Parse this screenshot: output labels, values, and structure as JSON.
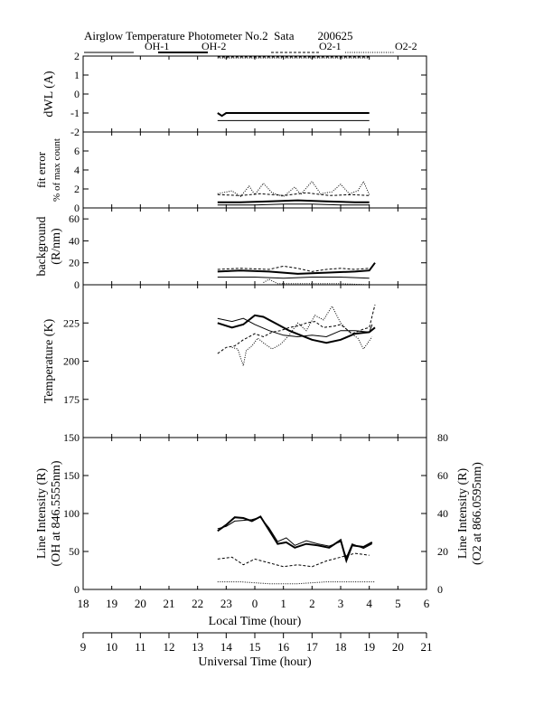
{
  "title": "Airglow Temperature Photometer No.2  Sata        200625",
  "legend": [
    {
      "name": "OH-1",
      "style": "solid-thin"
    },
    {
      "name": "OH-2",
      "style": "solid-thick"
    },
    {
      "name": "O2-1",
      "style": "dashed"
    },
    {
      "name": "O2-2",
      "style": "dotted"
    }
  ],
  "local_time_label": "Local Time (hour)",
  "universal_time_label": "Universal Time (hour)",
  "local_ticks": [
    "18",
    "19",
    "20",
    "21",
    "22",
    "23",
    "0",
    "1",
    "2",
    "3",
    "4",
    "5",
    "6"
  ],
  "universal_ticks": [
    "9",
    "10",
    "11",
    "12",
    "13",
    "14",
    "15",
    "16",
    "17",
    "18",
    "19",
    "20",
    "21"
  ],
  "chart_data": [
    {
      "type": "line",
      "ylabel": "dWL (A)",
      "ylim": [
        -2,
        2
      ],
      "yticks": [
        "-2",
        "-1",
        "0",
        "1",
        "2"
      ],
      "x_units": "Universal Time (hour)",
      "series": [
        {
          "name": "OH-1",
          "points": [
            [
              13.7,
              -1.4
            ],
            [
              19.0,
              -1.4
            ]
          ]
        },
        {
          "name": "OH-2",
          "points": [
            [
              13.7,
              -1.0
            ],
            [
              13.85,
              -1.15
            ],
            [
              14.0,
              -1.0
            ],
            [
              19.0,
              -1.0
            ]
          ]
        },
        {
          "name": "O2-1",
          "points": [
            [
              13.7,
              1.95
            ],
            [
              19.0,
              1.95
            ]
          ]
        },
        {
          "name": "O2-2",
          "points": [
            [
              13.7,
              1.9
            ],
            [
              19.0,
              1.9
            ]
          ]
        }
      ]
    },
    {
      "type": "line",
      "ylabel": "fit error % of max count",
      "ylim": [
        0,
        8
      ],
      "yticks": [
        "0",
        "2",
        "4",
        "6"
      ],
      "series": [
        {
          "name": "OH-1",
          "points": [
            [
              13.7,
              0.3
            ],
            [
              15,
              0.3
            ],
            [
              16,
              0.4
            ],
            [
              17,
              0.4
            ],
            [
              18,
              0.3
            ],
            [
              19,
              0.3
            ]
          ]
        },
        {
          "name": "OH-2",
          "points": [
            [
              13.7,
              0.6
            ],
            [
              14.5,
              0.6
            ],
            [
              15.5,
              0.7
            ],
            [
              16.5,
              0.8
            ],
            [
              17.5,
              0.7
            ],
            [
              18.5,
              0.6
            ],
            [
              19,
              0.6
            ]
          ]
        },
        {
          "name": "O2-1",
          "points": [
            [
              13.7,
              1.4
            ],
            [
              14.5,
              1.3
            ],
            [
              15.2,
              1.5
            ],
            [
              16,
              1.3
            ],
            [
              16.8,
              1.6
            ],
            [
              17.6,
              1.3
            ],
            [
              18.4,
              1.4
            ],
            [
              19,
              1.3
            ]
          ]
        },
        {
          "name": "O2-2",
          "points": [
            [
              13.7,
              1.5
            ],
            [
              14.2,
              1.8
            ],
            [
              14.5,
              1.2
            ],
            [
              14.8,
              2.3
            ],
            [
              15.0,
              1.4
            ],
            [
              15.3,
              2.6
            ],
            [
              15.6,
              1.6
            ],
            [
              16.0,
              1.2
            ],
            [
              16.4,
              2.2
            ],
            [
              16.6,
              1.4
            ],
            [
              17.0,
              2.8
            ],
            [
              17.3,
              1.5
            ],
            [
              17.7,
              1.7
            ],
            [
              18.0,
              2.5
            ],
            [
              18.3,
              1.5
            ],
            [
              18.6,
              1.8
            ],
            [
              18.8,
              2.8
            ],
            [
              19.0,
              1.4
            ]
          ]
        }
      ]
    },
    {
      "type": "line",
      "ylabel": "background (R/nm)",
      "ylim": [
        0,
        70
      ],
      "yticks": [
        "0",
        "20",
        "40",
        "60"
      ],
      "series": [
        {
          "name": "OH-1",
          "points": [
            [
              13.7,
              7
            ],
            [
              15,
              7
            ],
            [
              16,
              6
            ],
            [
              17,
              7
            ],
            [
              18,
              7
            ],
            [
              19,
              6
            ]
          ]
        },
        {
          "name": "OH-2",
          "points": [
            [
              13.7,
              12
            ],
            [
              14.5,
              13
            ],
            [
              15.5,
              12
            ],
            [
              16.5,
              10
            ],
            [
              17.5,
              11
            ],
            [
              18.5,
              12
            ],
            [
              19,
              13
            ],
            [
              19.2,
              20
            ]
          ]
        },
        {
          "name": "O2-1",
          "points": [
            [
              13.7,
              14
            ],
            [
              14.5,
              15
            ],
            [
              15.5,
              14
            ],
            [
              16,
              17
            ],
            [
              16.5,
              15
            ],
            [
              17,
              12
            ],
            [
              17.5,
              14
            ],
            [
              18,
              15
            ],
            [
              18.5,
              14
            ],
            [
              19,
              15
            ]
          ]
        },
        {
          "name": "O2-2",
          "points": [
            [
              15.3,
              2
            ],
            [
              15.5,
              5
            ],
            [
              15.8,
              1
            ],
            [
              16.3,
              1
            ],
            [
              17,
              1
            ],
            [
              18,
              1
            ],
            [
              19,
              0
            ]
          ]
        }
      ]
    },
    {
      "type": "line",
      "ylabel": "Temperature (K)",
      "ylim": [
        150,
        250
      ],
      "yticks": [
        "150",
        "175",
        "200",
        "225"
      ],
      "series": [
        {
          "name": "OH-1",
          "points": [
            [
              13.7,
              228
            ],
            [
              14.2,
              226
            ],
            [
              14.6,
              228
            ],
            [
              15.0,
              224
            ],
            [
              15.5,
              220
            ],
            [
              16,
              217
            ],
            [
              16.5,
              216
            ],
            [
              17,
              217
            ],
            [
              17.5,
              216
            ],
            [
              18,
              220
            ],
            [
              18.5,
              220
            ],
            [
              19,
              219
            ],
            [
              19.1,
              224
            ]
          ]
        },
        {
          "name": "OH-2",
          "points": [
            [
              13.7,
              225
            ],
            [
              14.2,
              222
            ],
            [
              14.6,
              224
            ],
            [
              15.0,
              230
            ],
            [
              15.3,
              229
            ],
            [
              15.8,
              224
            ],
            [
              16.2,
              220
            ],
            [
              16.6,
              217
            ],
            [
              17,
              214
            ],
            [
              17.5,
              212
            ],
            [
              18,
              214
            ],
            [
              18.5,
              218
            ],
            [
              19,
              219
            ],
            [
              19.2,
              222
            ]
          ]
        },
        {
          "name": "O2-1",
          "points": [
            [
              13.7,
              205
            ],
            [
              14.0,
              209
            ],
            [
              14.3,
              210
            ],
            [
              14.6,
              214
            ],
            [
              14.8,
              216
            ],
            [
              15.0,
              218
            ],
            [
              15.3,
              216
            ],
            [
              15.6,
              219
            ],
            [
              15.9,
              220
            ],
            [
              16.2,
              222
            ],
            [
              16.5,
              223
            ],
            [
              16.8,
              225
            ],
            [
              17.1,
              226
            ],
            [
              17.4,
              222
            ],
            [
              17.8,
              223
            ],
            [
              18.0,
              224
            ],
            [
              18.4,
              218
            ],
            [
              18.8,
              221
            ],
            [
              19.0,
              222
            ],
            [
              19.2,
              237
            ]
          ]
        },
        {
          "name": "O2-2",
          "points": [
            [
              14.2,
              209
            ],
            [
              14.4,
              208
            ],
            [
              14.6,
              197
            ],
            [
              14.7,
              207
            ],
            [
              14.9,
              210
            ],
            [
              15.1,
              215
            ],
            [
              15.3,
              212
            ],
            [
              15.6,
              208
            ],
            [
              15.9,
              211
            ],
            [
              16.2,
              217
            ],
            [
              16.5,
              225
            ],
            [
              16.8,
              220
            ],
            [
              17.1,
              230
            ],
            [
              17.4,
              227
            ],
            [
              17.7,
              236
            ],
            [
              18.0,
              225
            ],
            [
              18.3,
              219
            ],
            [
              18.6,
              215
            ],
            [
              18.8,
              208
            ],
            [
              19.1,
              216
            ]
          ]
        }
      ]
    },
    {
      "type": "line",
      "ylabel": "Line Intensity (R) (OH at 846.5555nm)",
      "ylim": [
        0,
        200
      ],
      "yticks": [
        "0",
        "50",
        "100",
        "150"
      ],
      "y2label": "Line Intensity (R) (O2 at 866.0595nm)",
      "y2lim": [
        0,
        80
      ],
      "y2ticks": [
        "0",
        "20",
        "40",
        "60",
        "80"
      ],
      "series": [
        {
          "name": "OH-1",
          "axis": "left",
          "points": [
            [
              13.7,
              80
            ],
            [
              14.0,
              83
            ],
            [
              14.3,
              90
            ],
            [
              14.6,
              91
            ],
            [
              14.9,
              92
            ],
            [
              15.2,
              95
            ],
            [
              15.5,
              81
            ],
            [
              15.8,
              63
            ],
            [
              16.1,
              68
            ],
            [
              16.4,
              58
            ],
            [
              16.8,
              64
            ],
            [
              17.2,
              60
            ],
            [
              17.6,
              57
            ],
            [
              18.0,
              63
            ],
            [
              18.2,
              42
            ],
            [
              18.4,
              60
            ],
            [
              18.8,
              54
            ],
            [
              19.1,
              60
            ]
          ]
        },
        {
          "name": "OH-2",
          "axis": "left",
          "points": [
            [
              13.7,
              77
            ],
            [
              14.0,
              85
            ],
            [
              14.3,
              95
            ],
            [
              14.6,
              94
            ],
            [
              14.9,
              90
            ],
            [
              15.2,
              96
            ],
            [
              15.5,
              78
            ],
            [
              15.8,
              60
            ],
            [
              16.1,
              62
            ],
            [
              16.4,
              55
            ],
            [
              16.8,
              60
            ],
            [
              17.2,
              58
            ],
            [
              17.6,
              55
            ],
            [
              18.0,
              65
            ],
            [
              18.2,
              38
            ],
            [
              18.4,
              58
            ],
            [
              18.8,
              56
            ],
            [
              19.1,
              62
            ]
          ]
        },
        {
          "name": "O2-1",
          "axis": "right",
          "points": [
            [
              13.7,
              16
            ],
            [
              14.2,
              17
            ],
            [
              14.6,
              13
            ],
            [
              15.0,
              16
            ],
            [
              15.5,
              14
            ],
            [
              16.0,
              12
            ],
            [
              16.5,
              13
            ],
            [
              17.0,
              12
            ],
            [
              17.5,
              15
            ],
            [
              18.0,
              17
            ],
            [
              18.5,
              19
            ],
            [
              19.0,
              18
            ]
          ]
        },
        {
          "name": "O2-2",
          "axis": "right",
          "points": [
            [
              13.7,
              4
            ],
            [
              14.5,
              4
            ],
            [
              15.5,
              3
            ],
            [
              16.5,
              3
            ],
            [
              17.5,
              4
            ],
            [
              18.5,
              4
            ],
            [
              19.2,
              4
            ]
          ]
        }
      ]
    }
  ]
}
